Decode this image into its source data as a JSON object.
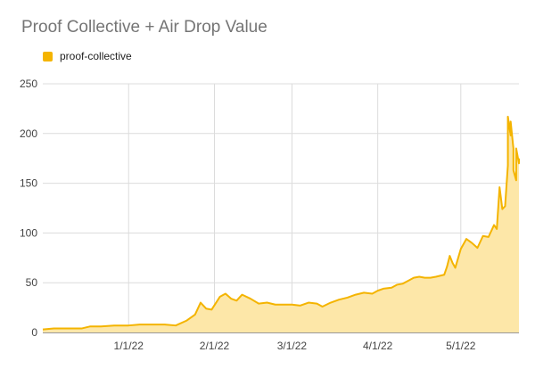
{
  "chart_data": {
    "type": "area",
    "title": "Proof Collective + Air Drop Value",
    "xlabel": "",
    "ylabel": "",
    "ylim": [
      0,
      250
    ],
    "yticks": [
      0,
      50,
      100,
      150,
      200,
      250
    ],
    "xticks": [
      "1/1/22",
      "2/1/22",
      "3/1/22",
      "4/1/22",
      "5/1/22"
    ],
    "grid": true,
    "legend_position": "top",
    "x_range": [
      "2021-12-01",
      "2022-05-22"
    ],
    "series": [
      {
        "name": "proof-collective",
        "color": "#f4b400",
        "fill": "#fde7a8",
        "points": [
          [
            "2021-12-01",
            3
          ],
          [
            "2021-12-05",
            4
          ],
          [
            "2021-12-10",
            4
          ],
          [
            "2021-12-15",
            4
          ],
          [
            "2021-12-18",
            6
          ],
          [
            "2021-12-22",
            6
          ],
          [
            "2021-12-27",
            7
          ],
          [
            "2022-01-01",
            7
          ],
          [
            "2022-01-05",
            8
          ],
          [
            "2022-01-10",
            8
          ],
          [
            "2022-01-14",
            8
          ],
          [
            "2022-01-18",
            7
          ],
          [
            "2022-01-22",
            12
          ],
          [
            "2022-01-25",
            18
          ],
          [
            "2022-01-27",
            30
          ],
          [
            "2022-01-29",
            24
          ],
          [
            "2022-01-31",
            23
          ],
          [
            "2022-02-03",
            36
          ],
          [
            "2022-02-05",
            39
          ],
          [
            "2022-02-07",
            34
          ],
          [
            "2022-02-09",
            32
          ],
          [
            "2022-02-11",
            38
          ],
          [
            "2022-02-14",
            34
          ],
          [
            "2022-02-17",
            29
          ],
          [
            "2022-02-20",
            30
          ],
          [
            "2022-02-23",
            28
          ],
          [
            "2022-02-26",
            28
          ],
          [
            "2022-03-01",
            28
          ],
          [
            "2022-03-04",
            27
          ],
          [
            "2022-03-07",
            30
          ],
          [
            "2022-03-10",
            29
          ],
          [
            "2022-03-12",
            26
          ],
          [
            "2022-03-15",
            30
          ],
          [
            "2022-03-18",
            33
          ],
          [
            "2022-03-21",
            35
          ],
          [
            "2022-03-24",
            38
          ],
          [
            "2022-03-27",
            40
          ],
          [
            "2022-03-30",
            39
          ],
          [
            "2022-04-01",
            42
          ],
          [
            "2022-04-03",
            44
          ],
          [
            "2022-04-06",
            45
          ],
          [
            "2022-04-08",
            48
          ],
          [
            "2022-04-10",
            49
          ],
          [
            "2022-04-12",
            52
          ],
          [
            "2022-04-14",
            55
          ],
          [
            "2022-04-16",
            56
          ],
          [
            "2022-04-18",
            55
          ],
          [
            "2022-04-20",
            55
          ],
          [
            "2022-04-22",
            56
          ],
          [
            "2022-04-25",
            58
          ],
          [
            "2022-04-26",
            66
          ],
          [
            "2022-04-27",
            77
          ],
          [
            "2022-04-28",
            70
          ],
          [
            "2022-04-29",
            65
          ],
          [
            "2022-05-01",
            84
          ],
          [
            "2022-05-03",
            94
          ],
          [
            "2022-05-05",
            90
          ],
          [
            "2022-05-07",
            85
          ],
          [
            "2022-05-09",
            97
          ],
          [
            "2022-05-11",
            96
          ],
          [
            "2022-05-13",
            108
          ],
          [
            "2022-05-14",
            104
          ],
          [
            "2022-05-15",
            146
          ],
          [
            "2022-05-16",
            124
          ],
          [
            "2022-05-17",
            127
          ],
          [
            "2022-05-18",
            168
          ],
          [
            "2022-05-18",
            217
          ],
          [
            "2022-05-19",
            198
          ],
          [
            "2022-05-19",
            212
          ],
          [
            "2022-05-20",
            185
          ],
          [
            "2022-05-20",
            163
          ],
          [
            "2022-05-21",
            153
          ],
          [
            "2022-05-21",
            170
          ],
          [
            "2022-05-21",
            185
          ],
          [
            "2022-05-22",
            170
          ],
          [
            "2022-05-22",
            175
          ]
        ]
      }
    ]
  }
}
